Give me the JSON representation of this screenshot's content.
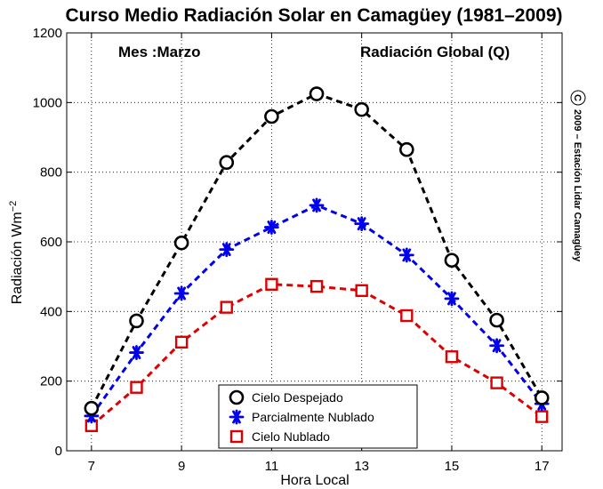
{
  "chart_data": {
    "type": "line",
    "title": "Curso Medio Radiación Solar en Camagüey (1981–2009)",
    "annotation_left": "Mes :Marzo",
    "annotation_right": "Radiación Global (Q)",
    "copyright_symbol": "C",
    "copyright_text": "2009 – Estación Lidar Camagüey",
    "xlabel": "Hora Local",
    "ylabel": "Radiación Wm",
    "ylabel_sup": "−2",
    "xlim": [
      6.45,
      17.45
    ],
    "ylim": [
      0,
      1200
    ],
    "xticks": [
      7,
      9,
      11,
      13,
      15,
      17
    ],
    "yticks": [
      0,
      200,
      400,
      600,
      800,
      1000,
      1200
    ],
    "grid": true,
    "legend_position": "bottom-center",
    "x": [
      7,
      8,
      9,
      10,
      11,
      12,
      13,
      14,
      15,
      16,
      17
    ],
    "series": [
      {
        "name": "Cielo Despejado",
        "color": "#000000",
        "marker": "circle",
        "values": [
          122,
          373,
          597,
          828,
          960,
          1025,
          980,
          865,
          547,
          375,
          152
        ]
      },
      {
        "name": "Parcialmente Nublado",
        "color": "#0000ee",
        "marker": "star",
        "values": [
          100,
          282,
          452,
          578,
          642,
          705,
          652,
          562,
          437,
          302,
          135
        ]
      },
      {
        "name": "Cielo Nublado",
        "color": "#dd0000",
        "marker": "square",
        "values": [
          72,
          182,
          312,
          412,
          478,
          472,
          460,
          388,
          270,
          195,
          98
        ]
      }
    ]
  }
}
